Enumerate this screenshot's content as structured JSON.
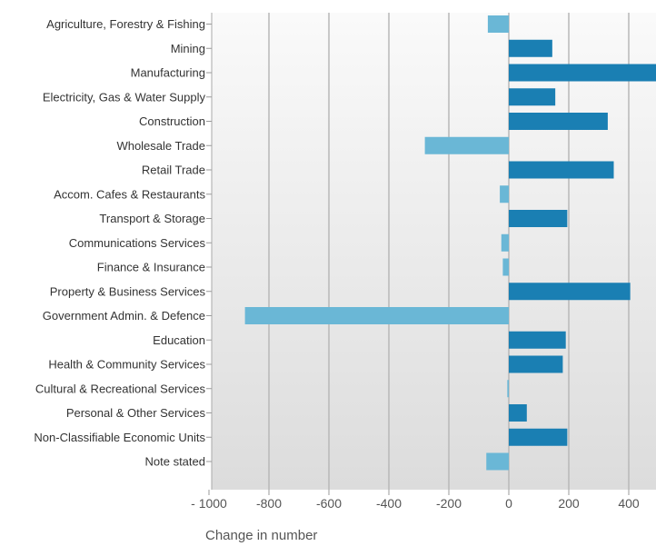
{
  "chart_data": {
    "type": "bar",
    "orientation": "horizontal",
    "title": "",
    "xlabel": "Change in number",
    "ylabel": "",
    "xlim": [
      -1000,
      500
    ],
    "x_ticks": [
      -1000,
      -800,
      -600,
      -400,
      -200,
      0,
      200,
      400
    ],
    "x_tick_labels": [
      "- 1000",
      "-800",
      "-600",
      "-400",
      "-200",
      "0",
      "200",
      "400"
    ],
    "grid": "vertical",
    "categories": [
      "Agriculture, Forestry & Fishing",
      "Mining",
      "Manufacturing",
      "Electricity, Gas & Water Supply",
      "Construction",
      "Wholesale Trade",
      "Retail Trade",
      "Accom. Cafes & Restaurants",
      "Transport & Storage",
      "Communications Services",
      "Finance & Insurance",
      "Property & Business Services",
      "Government Admin. & Defence",
      "Education",
      "Health & Community Services",
      "Cultural & Recreational Services",
      "Personal & Other Services",
      "Non-Classifiable Economic Units",
      "Note stated"
    ],
    "values": [
      -70,
      145,
      520,
      155,
      330,
      -280,
      350,
      -30,
      195,
      -25,
      -20,
      405,
      -880,
      190,
      180,
      -5,
      60,
      195,
      -75
    ],
    "colors": {
      "positive": "#1a7fb3",
      "negative": "#6ab7d6"
    }
  }
}
